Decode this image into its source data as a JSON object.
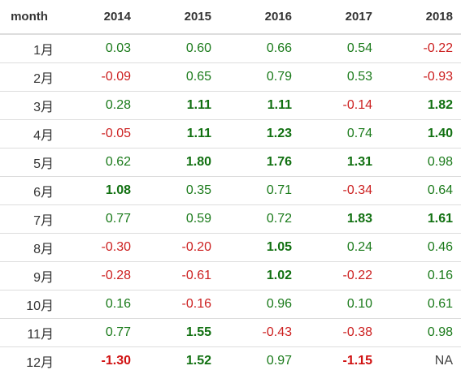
{
  "chart_data": {
    "type": "table",
    "columns": [
      "month",
      "2014",
      "2015",
      "2016",
      "2017",
      "2018"
    ],
    "strong_threshold": 1,
    "rows": [
      {
        "month": "1月",
        "values": [
          "0.03",
          "0.60",
          "0.66",
          "0.54",
          "-0.22"
        ]
      },
      {
        "month": "2月",
        "values": [
          "-0.09",
          "0.65",
          "0.79",
          "0.53",
          "-0.93"
        ]
      },
      {
        "month": "3月",
        "values": [
          "0.28",
          "1.11",
          "1.11",
          "-0.14",
          "1.82"
        ]
      },
      {
        "month": "4月",
        "values": [
          "-0.05",
          "1.11",
          "1.23",
          "0.74",
          "1.40"
        ]
      },
      {
        "month": "5月",
        "values": [
          "0.62",
          "1.80",
          "1.76",
          "1.31",
          "0.98"
        ]
      },
      {
        "month": "6月",
        "values": [
          "1.08",
          "0.35",
          "0.71",
          "-0.34",
          "0.64"
        ]
      },
      {
        "month": "7月",
        "values": [
          "0.77",
          "0.59",
          "0.72",
          "1.83",
          "1.61"
        ]
      },
      {
        "month": "8月",
        "values": [
          "-0.30",
          "-0.20",
          "1.05",
          "0.24",
          "0.46"
        ]
      },
      {
        "month": "9月",
        "values": [
          "-0.28",
          "-0.61",
          "1.02",
          "-0.22",
          "0.16"
        ]
      },
      {
        "month": "10月",
        "values": [
          "0.16",
          "-0.16",
          "0.96",
          "0.10",
          "0.61"
        ]
      },
      {
        "month": "11月",
        "values": [
          "0.77",
          "1.55",
          "-0.43",
          "-0.38",
          "0.98"
        ]
      },
      {
        "month": "12月",
        "values": [
          "-1.30",
          "1.52",
          "0.97",
          "-1.15",
          "NA"
        ]
      }
    ]
  },
  "colors": {
    "positive": "#1a7a1a",
    "negative": "#cc1f1f",
    "neutral": "#444444",
    "rule": "#dddddd"
  }
}
